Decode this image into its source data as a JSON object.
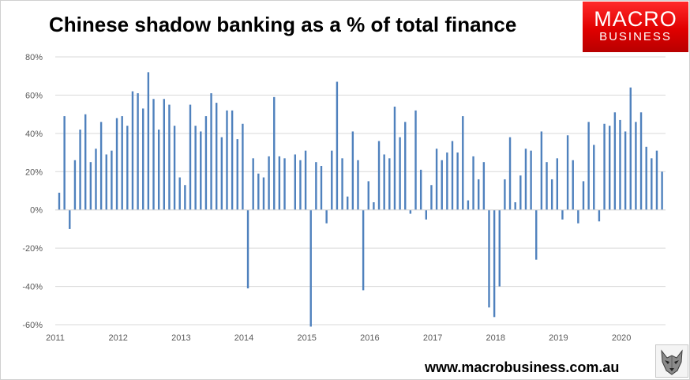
{
  "header": {
    "title": "Chinese shadow banking as a % of total finance"
  },
  "logo": {
    "line1": "MACRO",
    "line2": "BUSINESS"
  },
  "footer": {
    "website": "www.macrobusiness.com.au",
    "icon": "wolf-logo-icon"
  },
  "colors": {
    "bar": "#4f81bd",
    "gridline": "#d9d9d9",
    "axis_text": "#595959",
    "logo_red": "#e00000"
  },
  "chart_data": {
    "type": "bar",
    "title": "Chinese shadow banking as a % of total finance",
    "xlabel": "",
    "ylabel": "",
    "ylim": [
      -60,
      80
    ],
    "yticks": [
      -60,
      -40,
      -20,
      0,
      20,
      40,
      60,
      80
    ],
    "ytick_labels": [
      "-60%",
      "-40%",
      "-20%",
      "0%",
      "20%",
      "40%",
      "60%",
      "80%"
    ],
    "xtick_labels": [
      "2011",
      "2012",
      "2013",
      "2014",
      "2015",
      "2016",
      "2017",
      "2018",
      "2019",
      "2020"
    ],
    "xstart": "2011-01",
    "grid": true,
    "legend": "none",
    "series": [
      {
        "values": [
          9,
          49,
          -10,
          26,
          42,
          50,
          25,
          32,
          46,
          29,
          31,
          48,
          49,
          44,
          62,
          61,
          53,
          72,
          58,
          42,
          58,
          55,
          44,
          17,
          13,
          55,
          44,
          41,
          49,
          61,
          56,
          38,
          52,
          52,
          37,
          45,
          -41,
          27,
          19,
          17,
          28,
          59,
          28,
          27,
          0,
          29,
          26,
          31,
          -61,
          25,
          23,
          -7,
          31,
          67,
          27,
          7,
          41,
          26,
          -42,
          15,
          4,
          36,
          29,
          27,
          54,
          38,
          46,
          -2,
          52,
          21,
          -5,
          13,
          32,
          26,
          30,
          36,
          30,
          49,
          5,
          28,
          16,
          25,
          -51,
          -56,
          -40,
          16,
          38,
          4,
          18,
          32,
          31,
          -26,
          41,
          25,
          16,
          27,
          -5,
          39,
          26,
          -7,
          15,
          46,
          34,
          -6,
          45,
          44,
          51,
          47,
          41,
          64,
          46,
          51,
          33,
          27,
          31,
          20
        ]
      }
    ]
  }
}
